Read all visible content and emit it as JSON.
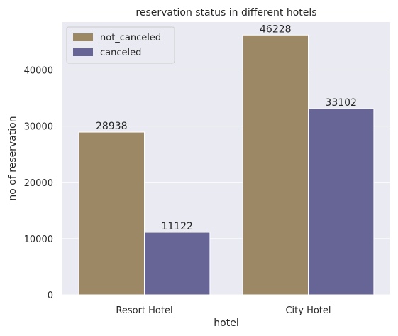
{
  "chart_data": {
    "type": "bar",
    "title": "reservation status in different hotels",
    "xlabel": "hotel",
    "ylabel": "no of reservation",
    "categories": [
      "Resort Hotel",
      "City Hotel"
    ],
    "series": [
      {
        "name": "not_canceled",
        "values": [
          28938,
          46228
        ],
        "color": "#9c8864",
        "labels": [
          "28938",
          "46228"
        ]
      },
      {
        "name": "canceled",
        "values": [
          11122,
          33102
        ],
        "color": "#676596",
        "labels": [
          "11122",
          "33102"
        ]
      }
    ],
    "ylim": [
      0,
      48539
    ],
    "yticks": [
      0,
      10000,
      20000,
      30000,
      40000
    ],
    "ytick_labels": [
      "0",
      "10000",
      "20000",
      "30000",
      "40000"
    ],
    "grid": true,
    "legend_position": "top-left",
    "background_color": "#eaeaf2",
    "grid_color": "#ffffff"
  }
}
